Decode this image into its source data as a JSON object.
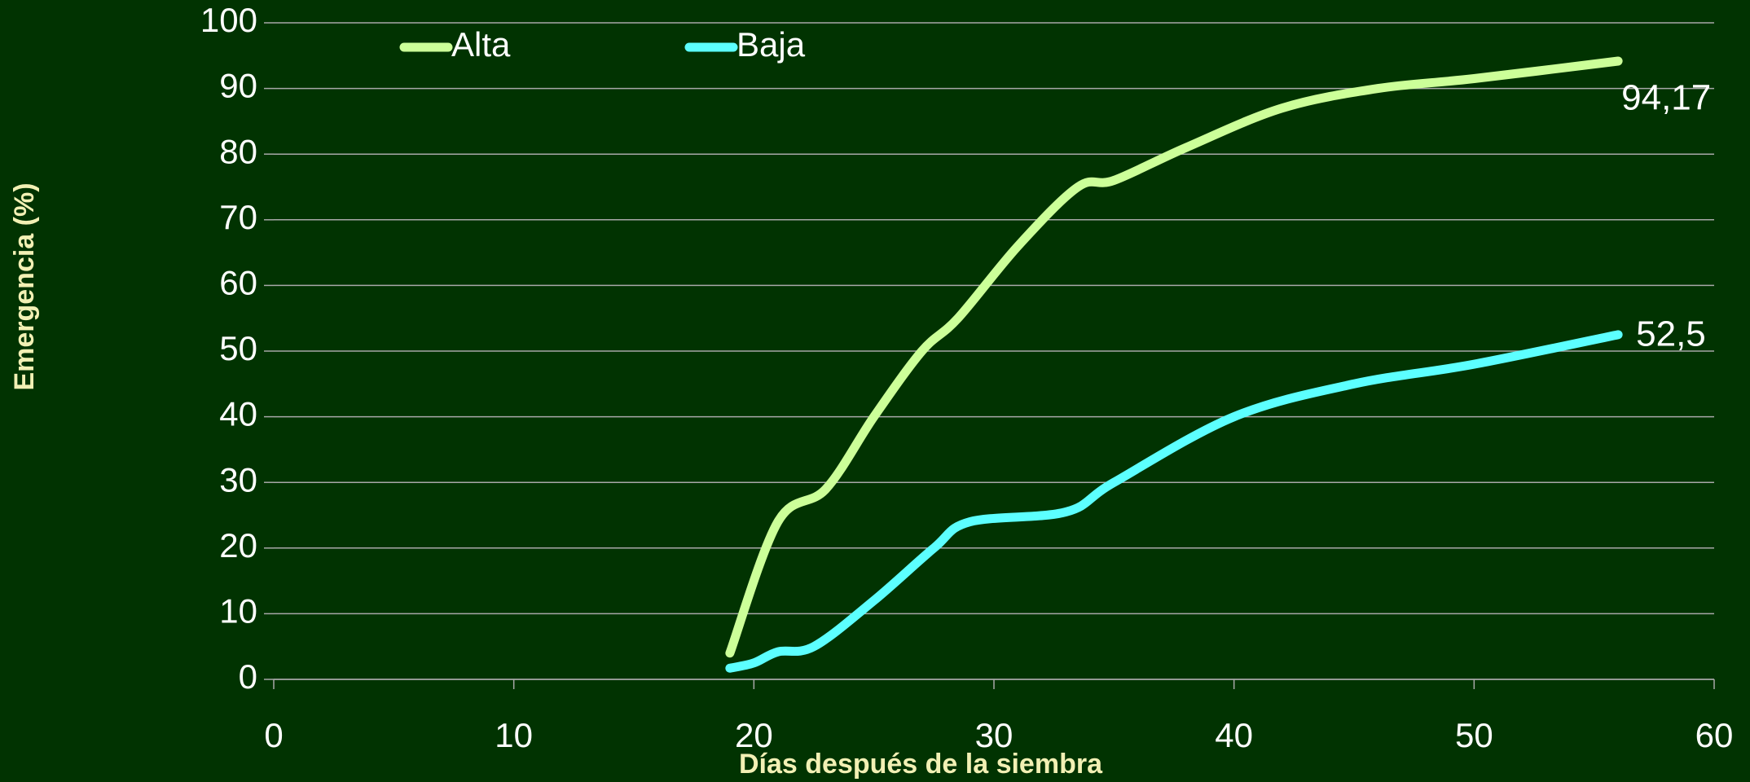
{
  "chart_data": {
    "type": "line",
    "xlabel": "Días después de la siembra",
    "ylabel": "Emergencia (%)",
    "xlim": [
      0,
      60
    ],
    "xticks": [
      0,
      10,
      20,
      30,
      40,
      50,
      60
    ],
    "ylim": [
      0,
      100
    ],
    "yticks": [
      0,
      10,
      20,
      30,
      40,
      50,
      60,
      70,
      80,
      90,
      100
    ],
    "grid": true,
    "legend": "top",
    "series": [
      {
        "name": "Alta",
        "color": "#ccff99",
        "x": [
          19,
          21,
          23,
          25,
          27,
          28.5,
          31,
          33.5,
          35,
          38,
          42,
          46,
          50,
          56
        ],
        "values": [
          4,
          24,
          29,
          40,
          50,
          55,
          66,
          75,
          76,
          81,
          87,
          90,
          91.5,
          94.17
        ],
        "value_labels": [
          null,
          null,
          null,
          null,
          null,
          null,
          null,
          null,
          null,
          null,
          null,
          null,
          null,
          "94,17"
        ]
      },
      {
        "name": "Baja",
        "color": "#5cffff",
        "x": [
          19,
          20,
          21,
          22.5,
          25,
          27.5,
          29,
          33,
          35,
          40,
          45,
          50,
          56
        ],
        "values": [
          1.7,
          2.5,
          4.2,
          5,
          12,
          20,
          24,
          25.5,
          30,
          40,
          45,
          48,
          52.5
        ],
        "value_labels": [
          null,
          null,
          null,
          null,
          null,
          null,
          null,
          null,
          null,
          null,
          null,
          null,
          "52,5"
        ]
      }
    ]
  }
}
